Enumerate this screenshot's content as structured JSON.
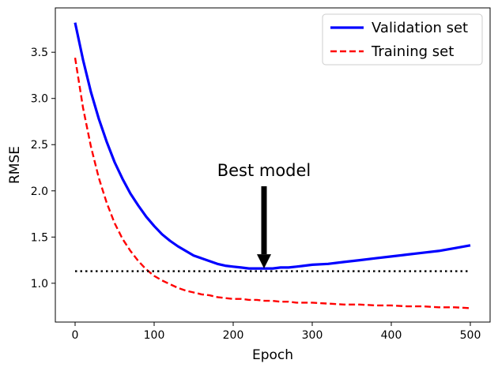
{
  "chart_data": {
    "type": "line",
    "xlabel": "Epoch",
    "ylabel": "RMSE",
    "xlim": [
      -25,
      525
    ],
    "ylim": [
      0.58,
      3.98
    ],
    "xticks": [
      0,
      100,
      200,
      300,
      400,
      500
    ],
    "yticks": [
      1.0,
      1.5,
      2.0,
      2.5,
      3.0,
      3.5
    ],
    "grid": false,
    "legend_position": "top-right",
    "series": [
      {
        "name": "Validation set",
        "style": "solid",
        "color": "#0000ff",
        "x": [
          0,
          10,
          20,
          30,
          40,
          50,
          60,
          70,
          80,
          90,
          100,
          110,
          120,
          130,
          140,
          150,
          160,
          170,
          180,
          190,
          200,
          210,
          220,
          230,
          240,
          250,
          260,
          270,
          280,
          290,
          300,
          320,
          340,
          360,
          380,
          400,
          420,
          440,
          460,
          480,
          500
        ],
        "values": [
          3.82,
          3.42,
          3.07,
          2.78,
          2.53,
          2.31,
          2.13,
          1.97,
          1.84,
          1.72,
          1.62,
          1.53,
          1.46,
          1.4,
          1.35,
          1.3,
          1.27,
          1.24,
          1.21,
          1.19,
          1.18,
          1.17,
          1.16,
          1.16,
          1.16,
          1.16,
          1.17,
          1.17,
          1.18,
          1.19,
          1.2,
          1.21,
          1.23,
          1.25,
          1.27,
          1.29,
          1.31,
          1.33,
          1.35,
          1.38,
          1.41
        ]
      },
      {
        "name": "Training set",
        "style": "dashed",
        "color": "#ff0000",
        "x": [
          0,
          10,
          20,
          30,
          40,
          50,
          60,
          70,
          80,
          90,
          100,
          110,
          120,
          130,
          140,
          150,
          160,
          170,
          180,
          190,
          200,
          210,
          220,
          230,
          240,
          250,
          260,
          270,
          280,
          290,
          300,
          320,
          340,
          360,
          380,
          400,
          420,
          440,
          460,
          480,
          500
        ],
        "values": [
          3.44,
          2.9,
          2.48,
          2.14,
          1.87,
          1.65,
          1.48,
          1.35,
          1.24,
          1.15,
          1.08,
          1.03,
          0.99,
          0.95,
          0.92,
          0.9,
          0.88,
          0.87,
          0.85,
          0.84,
          0.83,
          0.83,
          0.82,
          0.82,
          0.81,
          0.81,
          0.8,
          0.8,
          0.79,
          0.79,
          0.79,
          0.78,
          0.77,
          0.77,
          0.76,
          0.76,
          0.75,
          0.75,
          0.74,
          0.74,
          0.73
        ]
      },
      {
        "style": "dotted",
        "color": "#000000",
        "x": [
          0,
          500
        ],
        "values": [
          1.13,
          1.13
        ]
      }
    ],
    "annotation": {
      "text": "Best model",
      "arrow_tip": [
        239,
        1.16
      ],
      "arrow_start": [
        239,
        2.05
      ]
    }
  }
}
